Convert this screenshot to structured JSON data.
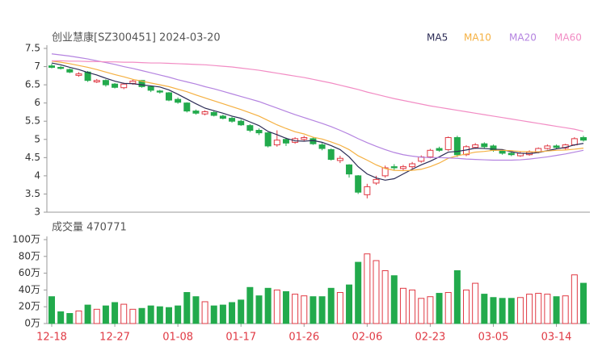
{
  "chart_data": [
    {
      "type": "candlestick",
      "title": "创业慧康[SZ300451] 2024-03-20",
      "categories": [
        "12-18",
        null,
        null,
        null,
        null,
        null,
        null,
        "12-27",
        null,
        null,
        null,
        null,
        null,
        null,
        "01-08",
        null,
        null,
        null,
        null,
        null,
        null,
        "01-17",
        null,
        null,
        null,
        null,
        null,
        null,
        "01-26",
        null,
        null,
        null,
        null,
        null,
        null,
        "02-06",
        null,
        null,
        null,
        null,
        null,
        null,
        "02-23",
        null,
        null,
        null,
        null,
        null,
        null,
        "03-05",
        null,
        null,
        null,
        null,
        null,
        null,
        "03-14",
        null,
        null,
        null
      ],
      "open": [
        7.02,
        6.98,
        6.92,
        6.76,
        6.85,
        6.58,
        6.62,
        6.52,
        6.42,
        6.54,
        6.62,
        6.45,
        6.33,
        6.28,
        6.1,
        6.0,
        5.78,
        5.7,
        5.74,
        5.64,
        5.58,
        5.5,
        5.38,
        5.25,
        5.18,
        4.85,
        5.0,
        4.92,
        5.0,
        5.02,
        4.85,
        4.72,
        4.42,
        4.3,
        4.0,
        3.48,
        3.8,
        4.0,
        4.25,
        4.2,
        4.25,
        4.4,
        4.52,
        4.75,
        4.72,
        5.05,
        4.58,
        4.78,
        4.88,
        4.82,
        4.68,
        4.62,
        4.55,
        4.58,
        4.65,
        4.75,
        4.82,
        4.76,
        4.85,
        5.05
      ],
      "high": [
        7.08,
        7.02,
        6.95,
        6.85,
        6.88,
        6.66,
        6.65,
        6.55,
        6.56,
        6.64,
        6.63,
        6.48,
        6.36,
        6.3,
        6.15,
        6.02,
        5.82,
        5.8,
        5.78,
        5.68,
        5.62,
        5.55,
        5.42,
        5.3,
        5.2,
        5.25,
        5.05,
        5.06,
        5.1,
        5.06,
        4.9,
        4.75,
        4.55,
        4.32,
        4.02,
        3.78,
        4.0,
        4.28,
        4.32,
        4.3,
        4.38,
        4.56,
        4.74,
        4.8,
        5.08,
        5.1,
        4.84,
        4.9,
        4.92,
        4.86,
        4.72,
        4.66,
        4.66,
        4.7,
        4.78,
        4.86,
        4.86,
        4.88,
        5.06,
        5.1
      ],
      "low": [
        6.95,
        6.92,
        6.82,
        6.72,
        6.58,
        6.55,
        6.45,
        6.4,
        6.38,
        6.5,
        6.42,
        6.3,
        6.26,
        6.05,
        5.98,
        5.74,
        5.68,
        5.66,
        5.63,
        5.55,
        5.46,
        5.37,
        5.2,
        5.12,
        4.78,
        4.8,
        4.82,
        4.88,
        4.94,
        4.85,
        4.7,
        4.42,
        4.35,
        3.95,
        3.5,
        3.38,
        3.75,
        3.95,
        4.15,
        4.15,
        4.2,
        4.36,
        4.48,
        4.66,
        4.68,
        4.52,
        4.54,
        4.74,
        4.76,
        4.66,
        4.58,
        4.54,
        4.52,
        4.55,
        4.62,
        4.72,
        4.74,
        4.72,
        4.82,
        4.94
      ],
      "close": [
        6.98,
        6.95,
        6.85,
        6.8,
        6.62,
        6.62,
        6.5,
        6.43,
        6.52,
        6.6,
        6.45,
        6.35,
        6.3,
        6.08,
        6.02,
        5.78,
        5.72,
        5.76,
        5.66,
        5.58,
        5.5,
        5.4,
        5.25,
        5.18,
        4.82,
        4.98,
        4.9,
        5.02,
        5.05,
        4.88,
        4.75,
        4.45,
        4.48,
        4.05,
        3.55,
        3.7,
        3.9,
        4.22,
        4.22,
        4.25,
        4.33,
        4.52,
        4.7,
        4.7,
        5.05,
        4.58,
        4.8,
        4.85,
        4.8,
        4.7,
        4.62,
        4.58,
        4.62,
        4.65,
        4.75,
        4.82,
        4.78,
        4.85,
        5.02,
        4.98
      ],
      "up_color": "#e03a44",
      "down_color": "#22aa4c",
      "series": [
        {
          "name": "MA5",
          "color": "#2b2b55",
          "values": [
            7.1,
            7.05,
            6.98,
            6.92,
            6.84,
            6.77,
            6.68,
            6.6,
            6.54,
            6.53,
            6.5,
            6.47,
            6.44,
            6.36,
            6.24,
            6.11,
            5.98,
            5.86,
            5.79,
            5.72,
            5.64,
            5.58,
            5.48,
            5.38,
            5.22,
            5.13,
            5.03,
            4.96,
            4.95,
            4.97,
            4.92,
            4.83,
            4.72,
            4.52,
            4.25,
            4.05,
            3.94,
            3.88,
            3.92,
            4.05,
            4.18,
            4.3,
            4.4,
            4.52,
            4.65,
            4.67,
            4.71,
            4.76,
            4.75,
            4.73,
            4.72,
            4.66,
            4.62,
            4.61,
            4.64,
            4.69,
            4.74,
            4.78,
            4.85,
            4.89
          ]
        },
        {
          "name": "MA10",
          "color": "#f5b041",
          "values": [
            7.15,
            7.12,
            7.08,
            7.03,
            6.98,
            6.92,
            6.85,
            6.78,
            6.72,
            6.65,
            6.6,
            6.55,
            6.5,
            6.45,
            6.38,
            6.31,
            6.22,
            6.14,
            6.06,
            5.98,
            5.9,
            5.82,
            5.73,
            5.64,
            5.52,
            5.4,
            5.3,
            5.21,
            5.15,
            5.06,
            5.01,
            4.93,
            4.84,
            4.72,
            4.55,
            4.43,
            4.3,
            4.2,
            4.15,
            4.14,
            4.15,
            4.18,
            4.25,
            4.35,
            4.48,
            4.55,
            4.6,
            4.65,
            4.67,
            4.7,
            4.7,
            4.69,
            4.67,
            4.66,
            4.66,
            4.68,
            4.7,
            4.71,
            4.73,
            4.76
          ]
        },
        {
          "name": "MA20",
          "color": "#b483e0",
          "values": [
            7.35,
            7.32,
            7.29,
            7.25,
            7.21,
            7.16,
            7.11,
            7.06,
            7.0,
            6.95,
            6.89,
            6.83,
            6.77,
            6.71,
            6.64,
            6.58,
            6.52,
            6.45,
            6.39,
            6.32,
            6.25,
            6.18,
            6.11,
            6.04,
            5.95,
            5.86,
            5.77,
            5.68,
            5.6,
            5.52,
            5.44,
            5.35,
            5.25,
            5.14,
            5.02,
            4.91,
            4.81,
            4.72,
            4.64,
            4.58,
            4.54,
            4.51,
            4.5,
            4.5,
            4.49,
            4.48,
            4.46,
            4.45,
            4.44,
            4.43,
            4.43,
            4.43,
            4.44,
            4.46,
            4.49,
            4.52,
            4.56,
            4.6,
            4.65,
            4.7
          ]
        },
        {
          "name": "MA60",
          "color": "#f28cc4",
          "values": [
            7.16,
            7.16,
            7.15,
            7.15,
            7.14,
            7.14,
            7.13,
            7.13,
            7.12,
            7.12,
            7.11,
            7.1,
            7.1,
            7.09,
            7.08,
            7.07,
            7.06,
            7.05,
            7.03,
            7.01,
            6.99,
            6.96,
            6.93,
            6.9,
            6.86,
            6.82,
            6.78,
            6.74,
            6.7,
            6.65,
            6.6,
            6.55,
            6.49,
            6.43,
            6.37,
            6.3,
            6.24,
            6.18,
            6.12,
            6.07,
            6.02,
            5.97,
            5.92,
            5.88,
            5.84,
            5.8,
            5.76,
            5.72,
            5.68,
            5.64,
            5.6,
            5.56,
            5.52,
            5.48,
            5.44,
            5.4,
            5.36,
            5.32,
            5.28,
            5.22
          ]
        }
      ],
      "ylim": [
        3,
        7.5
      ],
      "yticks": [
        3,
        3.5,
        4,
        4.5,
        5,
        5.5,
        6,
        6.5,
        7,
        7.5
      ]
    },
    {
      "type": "bar",
      "title": "成交量 470771",
      "values": [
        32,
        14,
        12,
        15,
        22,
        17,
        21,
        25,
        23,
        17,
        18,
        21,
        20,
        19,
        21,
        37,
        32,
        26,
        21,
        22,
        25,
        28,
        43,
        33,
        42,
        40,
        38,
        35,
        33,
        32,
        32,
        42,
        37,
        46,
        73,
        83,
        75,
        63,
        57,
        42,
        40,
        30,
        32,
        36,
        37,
        63,
        40,
        48,
        35,
        31,
        30,
        30,
        31,
        35,
        36,
        35,
        32,
        33,
        58,
        48
      ],
      "ylim": [
        0,
        100
      ],
      "yticks": [
        {
          "value": 0,
          "label": "0万"
        },
        {
          "value": 20,
          "label": "20万"
        },
        {
          "value": 40,
          "label": "40万"
        },
        {
          "value": 60,
          "label": "60万"
        },
        {
          "value": 80,
          "label": "80万"
        },
        {
          "value": 100,
          "label": "100万"
        }
      ]
    }
  ]
}
